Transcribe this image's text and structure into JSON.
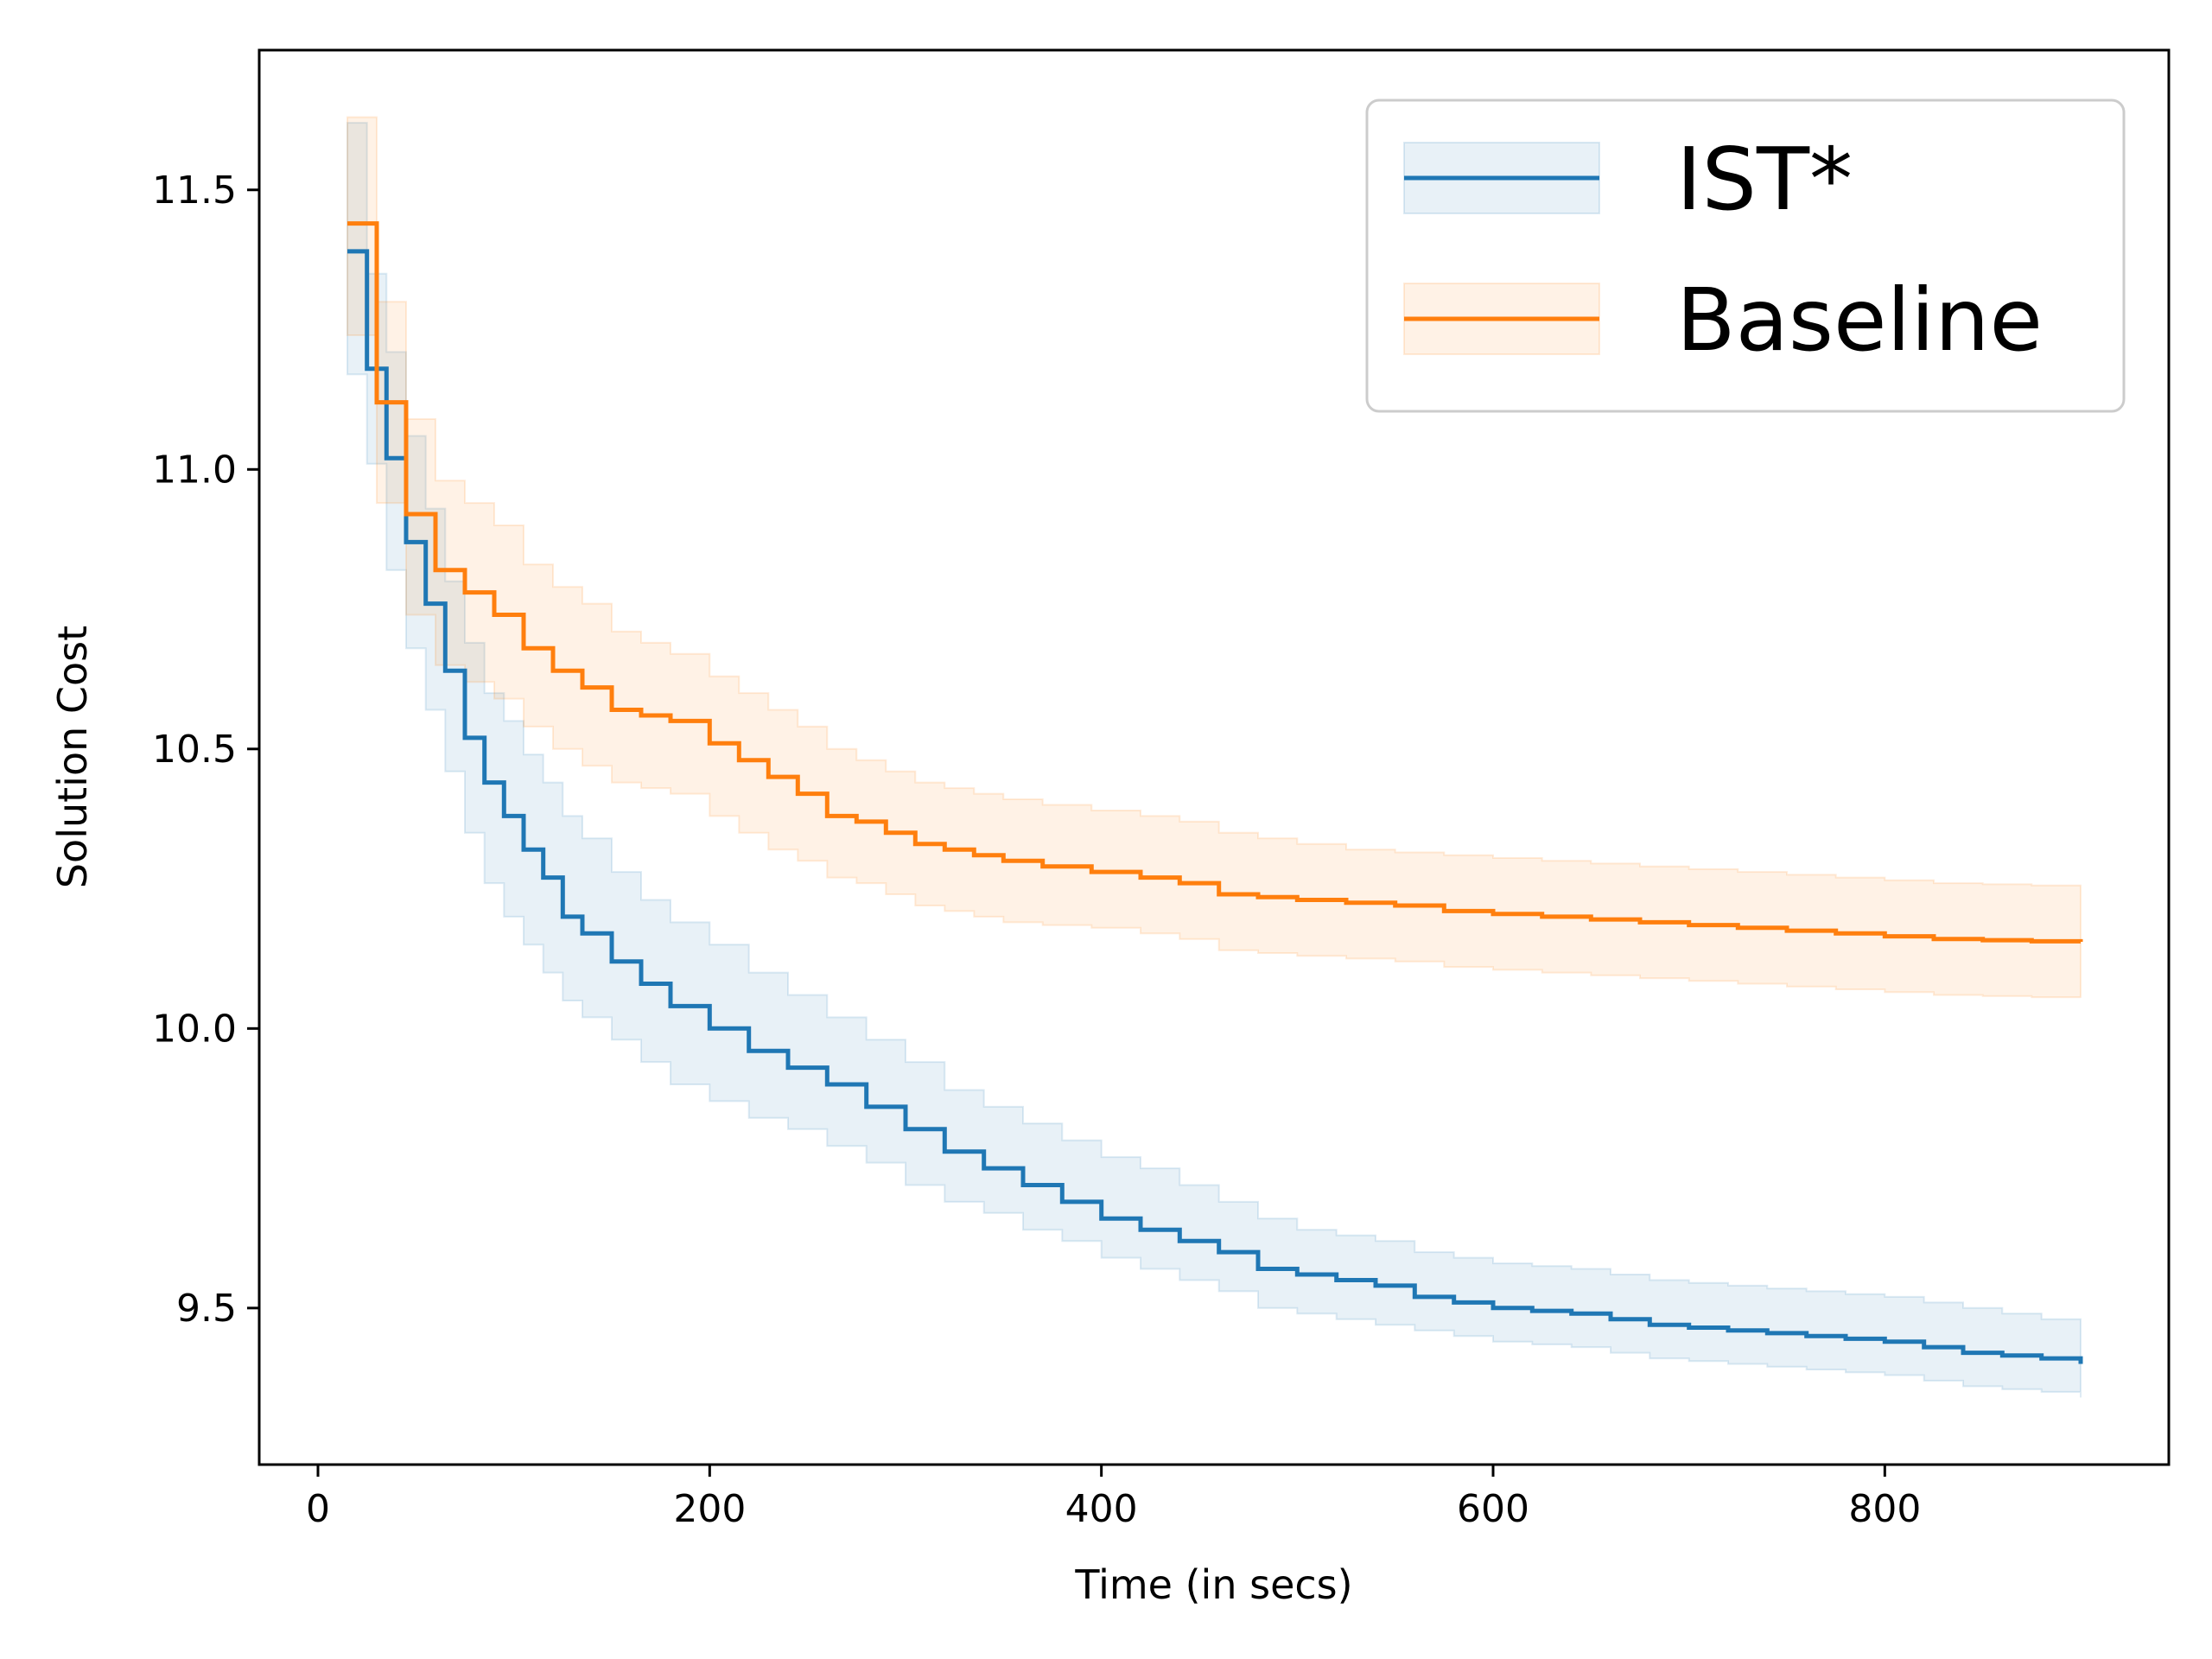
{
  "chart_data": {
    "type": "line",
    "title": "",
    "xlabel": "Time (in secs)",
    "ylabel": "Solution Cost",
    "xlim": [
      -30,
      945
    ],
    "ylim": [
      9.22,
      11.75
    ],
    "xticks": [
      0,
      200,
      400,
      600,
      800
    ],
    "yticks": [
      9.5,
      10.0,
      10.5,
      11.0,
      11.5
    ],
    "xtick_labels": [
      "0",
      "200",
      "400",
      "600",
      "800"
    ],
    "ytick_labels": [
      "9.5",
      "10.0",
      "10.5",
      "11.0",
      "11.5"
    ],
    "legend": {
      "position": "top-right",
      "entries": [
        "IST*",
        "Baseline"
      ]
    },
    "series": [
      {
        "name": "IST*",
        "color": "#1f77b4",
        "step": "post",
        "x": [
          15,
          25,
          35,
          45,
          55,
          65,
          75,
          85,
          95,
          105,
          115,
          125,
          135,
          150,
          165,
          180,
          200,
          220,
          240,
          260,
          280,
          300,
          320,
          340,
          360,
          380,
          400,
          420,
          440,
          460,
          480,
          500,
          520,
          540,
          560,
          580,
          600,
          620,
          640,
          660,
          680,
          700,
          720,
          740,
          760,
          780,
          800,
          820,
          840,
          860,
          880,
          900
        ],
        "y": [
          11.39,
          11.18,
          11.02,
          10.87,
          10.76,
          10.64,
          10.52,
          10.44,
          10.38,
          10.32,
          10.27,
          10.2,
          10.17,
          10.12,
          10.08,
          10.04,
          10.0,
          9.96,
          9.93,
          9.9,
          9.86,
          9.82,
          9.78,
          9.75,
          9.72,
          9.69,
          9.66,
          9.64,
          9.62,
          9.6,
          9.57,
          9.56,
          9.55,
          9.54,
          9.52,
          9.51,
          9.5,
          9.495,
          9.49,
          9.48,
          9.47,
          9.465,
          9.46,
          9.455,
          9.45,
          9.445,
          9.44,
          9.43,
          9.42,
          9.415,
          9.41,
          9.4
        ],
        "lower": [
          11.17,
          11.01,
          10.82,
          10.68,
          10.57,
          10.46,
          10.35,
          10.26,
          10.2,
          10.15,
          10.1,
          10.05,
          10.02,
          9.98,
          9.94,
          9.9,
          9.87,
          9.84,
          9.82,
          9.79,
          9.76,
          9.72,
          9.69,
          9.67,
          9.64,
          9.62,
          9.59,
          9.57,
          9.55,
          9.53,
          9.5,
          9.49,
          9.48,
          9.47,
          9.46,
          9.45,
          9.44,
          9.435,
          9.43,
          9.42,
          9.41,
          9.405,
          9.4,
          9.395,
          9.39,
          9.385,
          9.38,
          9.37,
          9.36,
          9.355,
          9.35,
          9.34
        ],
        "upper": [
          11.62,
          11.35,
          11.21,
          11.06,
          10.93,
          10.8,
          10.69,
          10.6,
          10.55,
          10.49,
          10.44,
          10.38,
          10.34,
          10.28,
          10.23,
          10.19,
          10.15,
          10.1,
          10.06,
          10.02,
          9.98,
          9.94,
          9.89,
          9.86,
          9.83,
          9.8,
          9.77,
          9.75,
          9.72,
          9.69,
          9.66,
          9.64,
          9.63,
          9.62,
          9.6,
          9.59,
          9.58,
          9.575,
          9.57,
          9.56,
          9.55,
          9.545,
          9.54,
          9.535,
          9.53,
          9.525,
          9.52,
          9.51,
          9.5,
          9.49,
          9.48,
          9.47
        ]
      },
      {
        "name": "Baseline",
        "color": "#ff7f0e",
        "step": "post",
        "x": [
          15,
          30,
          45,
          60,
          75,
          90,
          105,
          120,
          135,
          150,
          165,
          180,
          200,
          215,
          230,
          245,
          260,
          275,
          290,
          305,
          320,
          335,
          350,
          370,
          395,
          420,
          440,
          460,
          480,
          500,
          525,
          550,
          575,
          600,
          625,
          650,
          675,
          700,
          725,
          750,
          775,
          800,
          825,
          850,
          875,
          900
        ],
        "y": [
          11.44,
          11.12,
          10.92,
          10.82,
          10.78,
          10.74,
          10.68,
          10.64,
          10.61,
          10.57,
          10.56,
          10.55,
          10.51,
          10.48,
          10.45,
          10.42,
          10.38,
          10.37,
          10.35,
          10.33,
          10.32,
          10.31,
          10.3,
          10.29,
          10.28,
          10.27,
          10.26,
          10.24,
          10.235,
          10.23,
          10.225,
          10.22,
          10.21,
          10.205,
          10.2,
          10.195,
          10.19,
          10.185,
          10.18,
          10.175,
          10.17,
          10.165,
          10.16,
          10.158,
          10.156,
          10.155
        ],
        "lower": [
          11.24,
          10.94,
          10.74,
          10.65,
          10.62,
          10.59,
          10.54,
          10.5,
          10.47,
          10.44,
          10.43,
          10.42,
          10.38,
          10.35,
          10.32,
          10.3,
          10.27,
          10.26,
          10.24,
          10.22,
          10.21,
          10.2,
          10.19,
          10.185,
          10.18,
          10.17,
          10.16,
          10.14,
          10.135,
          10.13,
          10.125,
          10.12,
          10.11,
          10.105,
          10.1,
          10.095,
          10.09,
          10.085,
          10.08,
          10.075,
          10.07,
          10.065,
          10.06,
          10.058,
          10.056,
          10.055
        ],
        "upper": [
          11.63,
          11.3,
          11.09,
          10.98,
          10.94,
          10.9,
          10.83,
          10.79,
          10.76,
          10.71,
          10.69,
          10.67,
          10.63,
          10.6,
          10.57,
          10.54,
          10.5,
          10.48,
          10.46,
          10.44,
          10.43,
          10.42,
          10.41,
          10.4,
          10.39,
          10.38,
          10.37,
          10.35,
          10.34,
          10.33,
          10.32,
          10.315,
          10.31,
          10.305,
          10.3,
          10.295,
          10.29,
          10.285,
          10.28,
          10.275,
          10.27,
          10.265,
          10.26,
          10.258,
          10.256,
          10.255
        ]
      }
    ]
  }
}
